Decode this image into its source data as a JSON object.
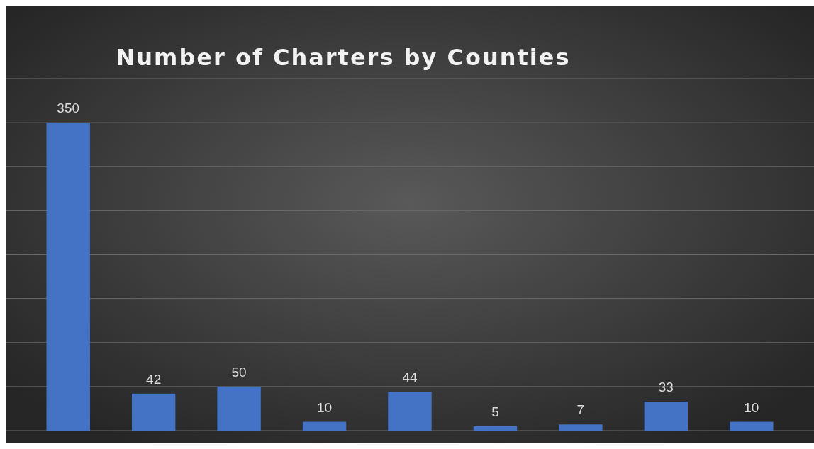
{
  "chart_data": {
    "type": "bar",
    "title": "Number of Charters by Counties",
    "categories": [
      null,
      null,
      null,
      null,
      null,
      null,
      null,
      null,
      null
    ],
    "values": [
      350,
      42,
      50,
      10,
      44,
      5,
      7,
      33,
      10
    ],
    "color": "#4472c4",
    "ylim": [
      0,
      400
    ],
    "yticks": [
      {
        "value": 0,
        "label": null
      },
      {
        "value": 50,
        "label": null
      },
      {
        "value": 100,
        "label": null
      },
      {
        "value": 150,
        "label": null
      },
      {
        "value": 200,
        "label": null
      },
      {
        "value": 250,
        "label": null
      },
      {
        "value": 300,
        "label": null
      },
      {
        "value": 350,
        "label": null
      },
      {
        "value": 400,
        "label": null
      }
    ],
    "grid": "y",
    "data_labels": true
  }
}
